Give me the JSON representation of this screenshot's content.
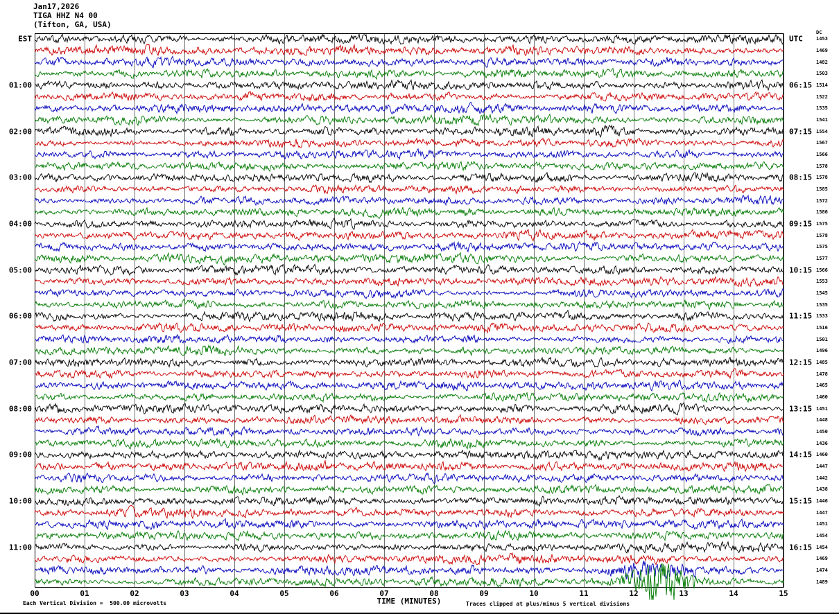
{
  "header": {
    "date": "Jan17,2026",
    "station": "TIGA HHZ N4 00",
    "location": "(Tifton, GA, USA)"
  },
  "left_axis": {
    "label": "EST",
    "times": [
      "01:00",
      "02:00",
      "03:00",
      "04:00",
      "05:00",
      "06:00",
      "07:00",
      "08:00",
      "09:00",
      "10:00",
      "11:00"
    ]
  },
  "right_axis": {
    "label": "UTC",
    "dc_header": "DC",
    "times": [
      "06:15",
      "07:15",
      "08:15",
      "09:15",
      "10:15",
      "11:15",
      "12:15",
      "13:15",
      "14:15",
      "15:15",
      "16:15"
    ],
    "dc_values": [
      1453,
      1469,
      1482,
      1503,
      1514,
      1522,
      1535,
      1541,
      1554,
      1567,
      1566,
      1578,
      1578,
      1585,
      1572,
      1586,
      1575,
      1578,
      1575,
      1577,
      1566,
      1553,
      1545,
      1535,
      1533,
      1516,
      1501,
      1496,
      1485,
      1478,
      1465,
      1460,
      1451,
      1448,
      1450,
      1436,
      1460,
      1447,
      1442,
      1438,
      1446,
      1447,
      1451,
      1454,
      1454,
      1469,
      1474,
      1489
    ]
  },
  "x_axis": {
    "label": "TIME (MINUTES)",
    "ticks": [
      "00",
      "01",
      "02",
      "03",
      "04",
      "05",
      "06",
      "07",
      "08",
      "09",
      "10",
      "11",
      "12",
      "13",
      "14",
      "15"
    ]
  },
  "footer": {
    "left": "Each Vertical Division =  500.00 microvolts",
    "right": "Traces clipped at plus/minus 5 vertical divisions"
  },
  "chart_data": {
    "type": "line",
    "title": "TIGA HHZ N4 00 helicorder (webicorder) — Jan17,2026 — Tifton, GA, USA",
    "station": "TIGA HHZ N4 00",
    "location": "Tifton, GA, USA",
    "date": "Jan17,2026",
    "xlabel": "TIME (MINUTES)",
    "x_range_minutes": [
      0,
      15
    ],
    "rows": 48,
    "row_duration_minutes": 15,
    "rows_per_hour": 4,
    "row_color_cycle": [
      "#000000",
      "#cc0000",
      "#0000bb",
      "#007a00"
    ],
    "first_row_est": "00:00",
    "last_row_est": "11:45",
    "vertical_division_microvolts": 500.0,
    "clip_divisions": 5,
    "grid_minutes": 1,
    "waveform": "continuous background seismic noise on every 15-minute trace row",
    "events": [
      {
        "row": 47,
        "minute": 12.45,
        "relative_amplitude": 9,
        "sigma": 30,
        "clip": 26,
        "color": "#007a00",
        "description": "large-amplitude green burst near minute 12.5 on the final (11:45 EST) trace"
      },
      {
        "row": 46,
        "minute": 12.45,
        "relative_amplitude": 1.5,
        "sigma": 36,
        "clip": 14,
        "description": "slight amplitude increase on the preceding trace"
      }
    ]
  }
}
